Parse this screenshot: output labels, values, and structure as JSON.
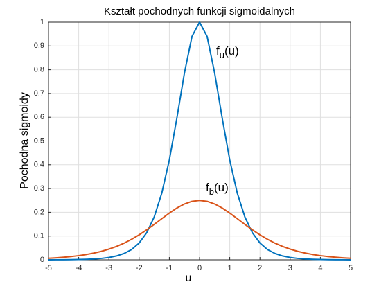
{
  "chart_data": {
    "type": "line",
    "title": "Kształt pochodnych funkcji sigmoidalnych",
    "x_label": "u",
    "y_label": "Pochodna sigmoidy",
    "x": [
      -5,
      -4.75,
      -4.5,
      -4.25,
      -4,
      -3.75,
      -3.5,
      -3.25,
      -3,
      -2.75,
      -2.5,
      -2.25,
      -2,
      -1.75,
      -1.5,
      -1.25,
      -1,
      -0.75,
      -0.5,
      -0.25,
      0,
      0.25,
      0.5,
      0.75,
      1,
      1.25,
      1.5,
      1.75,
      2,
      2.25,
      2.5,
      2.75,
      3,
      3.25,
      3.5,
      3.75,
      4,
      4.25,
      4.5,
      4.75,
      5
    ],
    "series": [
      {
        "color": "#0072bd",
        "values": [
          0.00018,
          0.0003,
          0.00049,
          0.00081,
          0.00134,
          0.00221,
          0.00364,
          0.006,
          0.00987,
          0.0163,
          0.02659,
          0.04347,
          0.07065,
          0.11381,
          0.18071,
          0.28041,
          0.41997,
          0.59659,
          0.78645,
          0.94001,
          1,
          0.94001,
          0.78645,
          0.59659,
          0.41997,
          0.28041,
          0.18071,
          0.11381,
          0.07065,
          0.04347,
          0.02659,
          0.0163,
          0.00987,
          0.006,
          0.00364,
          0.00221,
          0.00134,
          0.00081,
          0.00049,
          0.0003,
          0.00018
        ]
      },
      {
        "color": "#d95319",
        "values": [
          0.00665,
          0.0085,
          0.01087,
          0.01386,
          0.01766,
          0.02235,
          0.02845,
          0.03574,
          0.04518,
          0.05635,
          0.0701,
          0.08626,
          0.10499,
          0.12603,
          0.14915,
          0.1731,
          0.19661,
          0.21789,
          0.235,
          0.24613,
          0.25,
          0.24613,
          0.235,
          0.21789,
          0.19661,
          0.1731,
          0.14915,
          0.12603,
          0.10499,
          0.08626,
          0.0701,
          0.05635,
          0.04518,
          0.03574,
          0.02845,
          0.02235,
          0.01766,
          0.01386,
          0.01087,
          0.0085,
          0.00665
        ]
      }
    ],
    "annotations": [
      {
        "text": "f",
        "subscript": "u",
        "suffix": "(u)"
      },
      {
        "text": "f",
        "subscript": "b",
        "suffix": "(u)"
      }
    ],
    "xlim": [
      -5,
      5
    ],
    "xticks": [
      -5,
      -4,
      -3,
      -2,
      -1,
      0,
      1,
      2,
      3,
      4,
      5
    ],
    "ylim": [
      0,
      1
    ],
    "yticks": [
      0,
      0.1,
      0.2,
      0.3,
      0.4,
      0.5,
      0.6,
      0.7,
      0.8,
      0.9,
      1
    ],
    "grid": true
  }
}
